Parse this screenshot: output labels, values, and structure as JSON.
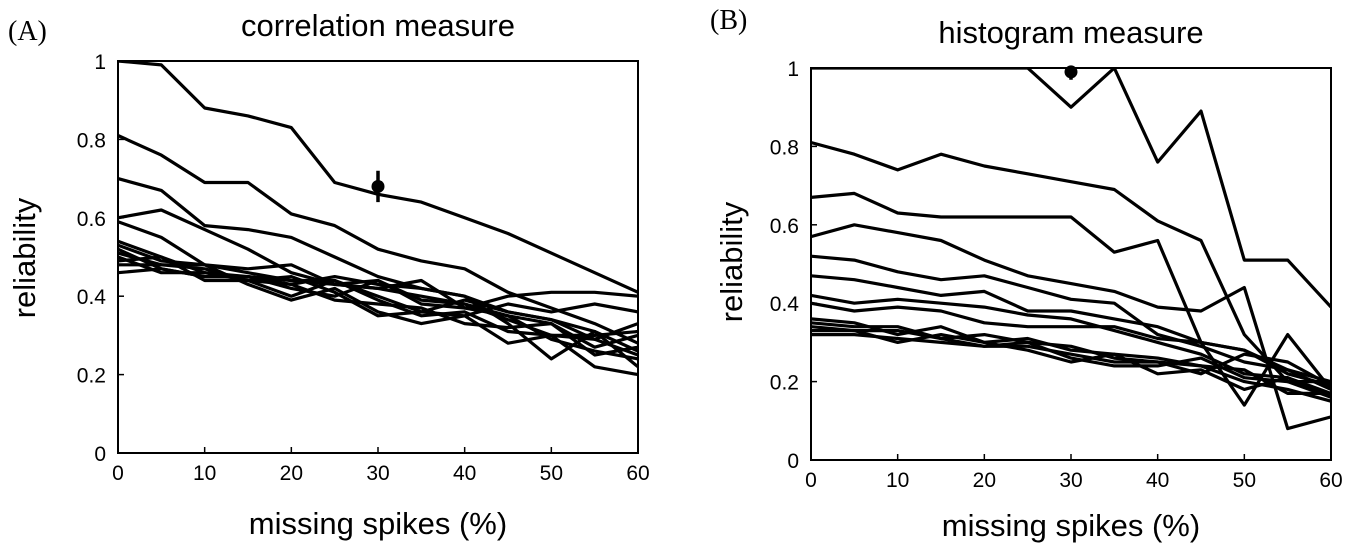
{
  "chart_data": [
    {
      "type": "line",
      "panel_label": "(A)",
      "title": "correlation measure",
      "xlabel": "missing spikes (%)",
      "ylabel": "reliability",
      "xlim": [
        0,
        60
      ],
      "ylim": [
        0,
        1
      ],
      "xticks": [
        "0",
        "10",
        "20",
        "30",
        "40",
        "50",
        "60"
      ],
      "yticks": [
        "0",
        "0.2",
        "0.4",
        "0.6",
        "0.8",
        "1"
      ],
      "x": [
        0,
        5,
        10,
        15,
        20,
        25,
        30,
        35,
        40,
        45,
        50,
        55,
        60
      ],
      "series": [
        {
          "values": [
            1.0,
            0.99,
            0.88,
            0.86,
            0.83,
            0.69,
            0.66,
            0.64,
            0.6,
            0.56,
            0.51,
            0.46,
            0.41
          ]
        },
        {
          "values": [
            0.81,
            0.76,
            0.69,
            0.69,
            0.61,
            0.58,
            0.52,
            0.49,
            0.47,
            0.41,
            0.37,
            0.33,
            0.28
          ]
        },
        {
          "values": [
            0.7,
            0.67,
            0.58,
            0.57,
            0.55,
            0.5,
            0.45,
            0.42,
            0.4,
            0.36,
            0.34,
            0.31,
            0.26
          ]
        },
        {
          "values": [
            0.6,
            0.62,
            0.57,
            0.52,
            0.46,
            0.43,
            0.42,
            0.44,
            0.37,
            0.4,
            0.41,
            0.41,
            0.4
          ]
        },
        {
          "values": [
            0.59,
            0.55,
            0.48,
            0.47,
            0.48,
            0.43,
            0.44,
            0.39,
            0.38,
            0.35,
            0.29,
            0.26,
            0.24
          ]
        },
        {
          "values": [
            0.54,
            0.5,
            0.46,
            0.44,
            0.43,
            0.45,
            0.43,
            0.42,
            0.4,
            0.33,
            0.24,
            0.31,
            0.22
          ]
        },
        {
          "values": [
            0.53,
            0.49,
            0.48,
            0.46,
            0.44,
            0.44,
            0.4,
            0.36,
            0.39,
            0.36,
            0.34,
            0.29,
            0.33
          ]
        },
        {
          "values": [
            0.52,
            0.47,
            0.45,
            0.45,
            0.42,
            0.4,
            0.44,
            0.38,
            0.37,
            0.35,
            0.33,
            0.27,
            0.3
          ]
        },
        {
          "values": [
            0.51,
            0.48,
            0.47,
            0.44,
            0.4,
            0.44,
            0.39,
            0.35,
            0.36,
            0.31,
            0.3,
            0.29,
            0.25
          ]
        },
        {
          "values": [
            0.5,
            0.46,
            0.46,
            0.45,
            0.43,
            0.39,
            0.38,
            0.37,
            0.33,
            0.32,
            0.33,
            0.25,
            0.27
          ]
        },
        {
          "values": [
            0.49,
            0.5,
            0.44,
            0.44,
            0.45,
            0.41,
            0.35,
            0.36,
            0.35,
            0.38,
            0.36,
            0.38,
            0.36
          ]
        },
        {
          "values": [
            0.48,
            0.48,
            0.48,
            0.43,
            0.39,
            0.42,
            0.36,
            0.33,
            0.35,
            0.28,
            0.3,
            0.22,
            0.2
          ]
        },
        {
          "values": [
            0.46,
            0.47,
            0.45,
            0.45,
            0.44,
            0.43,
            0.42,
            0.4,
            0.38,
            0.34,
            0.3,
            0.3,
            0.31
          ]
        }
      ],
      "marker": {
        "x": 30,
        "y": 0.68,
        "err_low": 0.64,
        "err_high": 0.72
      }
    },
    {
      "type": "line",
      "panel_label": "(B)",
      "title": "histogram measure",
      "xlabel": "missing spikes (%)",
      "ylabel": "reliability",
      "xlim": [
        0,
        60
      ],
      "ylim": [
        0,
        1
      ],
      "xticks": [
        "0",
        "10",
        "20",
        "30",
        "40",
        "50",
        "60"
      ],
      "yticks": [
        "0",
        "0.2",
        "0.4",
        "0.6",
        "0.8",
        "1"
      ],
      "x": [
        0,
        5,
        10,
        15,
        20,
        25,
        30,
        35,
        40,
        45,
        50,
        55,
        60
      ],
      "series": [
        {
          "values": [
            1.0,
            1.0,
            1.0,
            1.0,
            1.0,
            1.0,
            0.9,
            1.0,
            0.76,
            0.89,
            0.51,
            0.51,
            0.39
          ]
        },
        {
          "values": [
            0.81,
            0.78,
            0.74,
            0.78,
            0.75,
            0.73,
            0.71,
            0.69,
            0.61,
            0.56,
            0.32,
            0.2,
            0.16
          ]
        },
        {
          "values": [
            0.67,
            0.68,
            0.63,
            0.62,
            0.62,
            0.62,
            0.62,
            0.53,
            0.56,
            0.3,
            0.14,
            0.32,
            0.18
          ]
        },
        {
          "values": [
            0.57,
            0.6,
            0.58,
            0.56,
            0.51,
            0.47,
            0.45,
            0.43,
            0.39,
            0.38,
            0.44,
            0.08,
            0.11
          ]
        },
        {
          "values": [
            0.52,
            0.51,
            0.48,
            0.46,
            0.47,
            0.44,
            0.41,
            0.4,
            0.32,
            0.29,
            0.25,
            0.23,
            0.2
          ]
        },
        {
          "values": [
            0.47,
            0.46,
            0.44,
            0.42,
            0.43,
            0.38,
            0.38,
            0.36,
            0.34,
            0.3,
            0.28,
            0.23,
            0.18
          ]
        },
        {
          "values": [
            0.42,
            0.4,
            0.41,
            0.4,
            0.39,
            0.37,
            0.36,
            0.33,
            0.3,
            0.27,
            0.22,
            0.21,
            0.17
          ]
        },
        {
          "values": [
            0.4,
            0.38,
            0.39,
            0.38,
            0.35,
            0.34,
            0.34,
            0.34,
            0.31,
            0.3,
            0.28,
            0.22,
            0.19
          ]
        },
        {
          "values": [
            0.36,
            0.35,
            0.32,
            0.34,
            0.3,
            0.31,
            0.28,
            0.27,
            0.26,
            0.24,
            0.23,
            0.17,
            0.17
          ]
        },
        {
          "values": [
            0.35,
            0.34,
            0.34,
            0.31,
            0.32,
            0.3,
            0.29,
            0.26,
            0.25,
            0.22,
            0.27,
            0.25,
            0.19
          ]
        },
        {
          "values": [
            0.34,
            0.33,
            0.33,
            0.31,
            0.29,
            0.3,
            0.26,
            0.24,
            0.24,
            0.26,
            0.21,
            0.2,
            0.2
          ]
        },
        {
          "values": [
            0.33,
            0.33,
            0.3,
            0.32,
            0.3,
            0.28,
            0.25,
            0.27,
            0.22,
            0.23,
            0.18,
            0.21,
            0.16
          ]
        },
        {
          "values": [
            0.32,
            0.32,
            0.31,
            0.3,
            0.29,
            0.29,
            0.27,
            0.25,
            0.25,
            0.24,
            0.2,
            0.18,
            0.15
          ]
        }
      ],
      "marker": {
        "x": 30,
        "y": 0.99,
        "err_low": 0.97,
        "err_high": 1.0
      }
    }
  ]
}
